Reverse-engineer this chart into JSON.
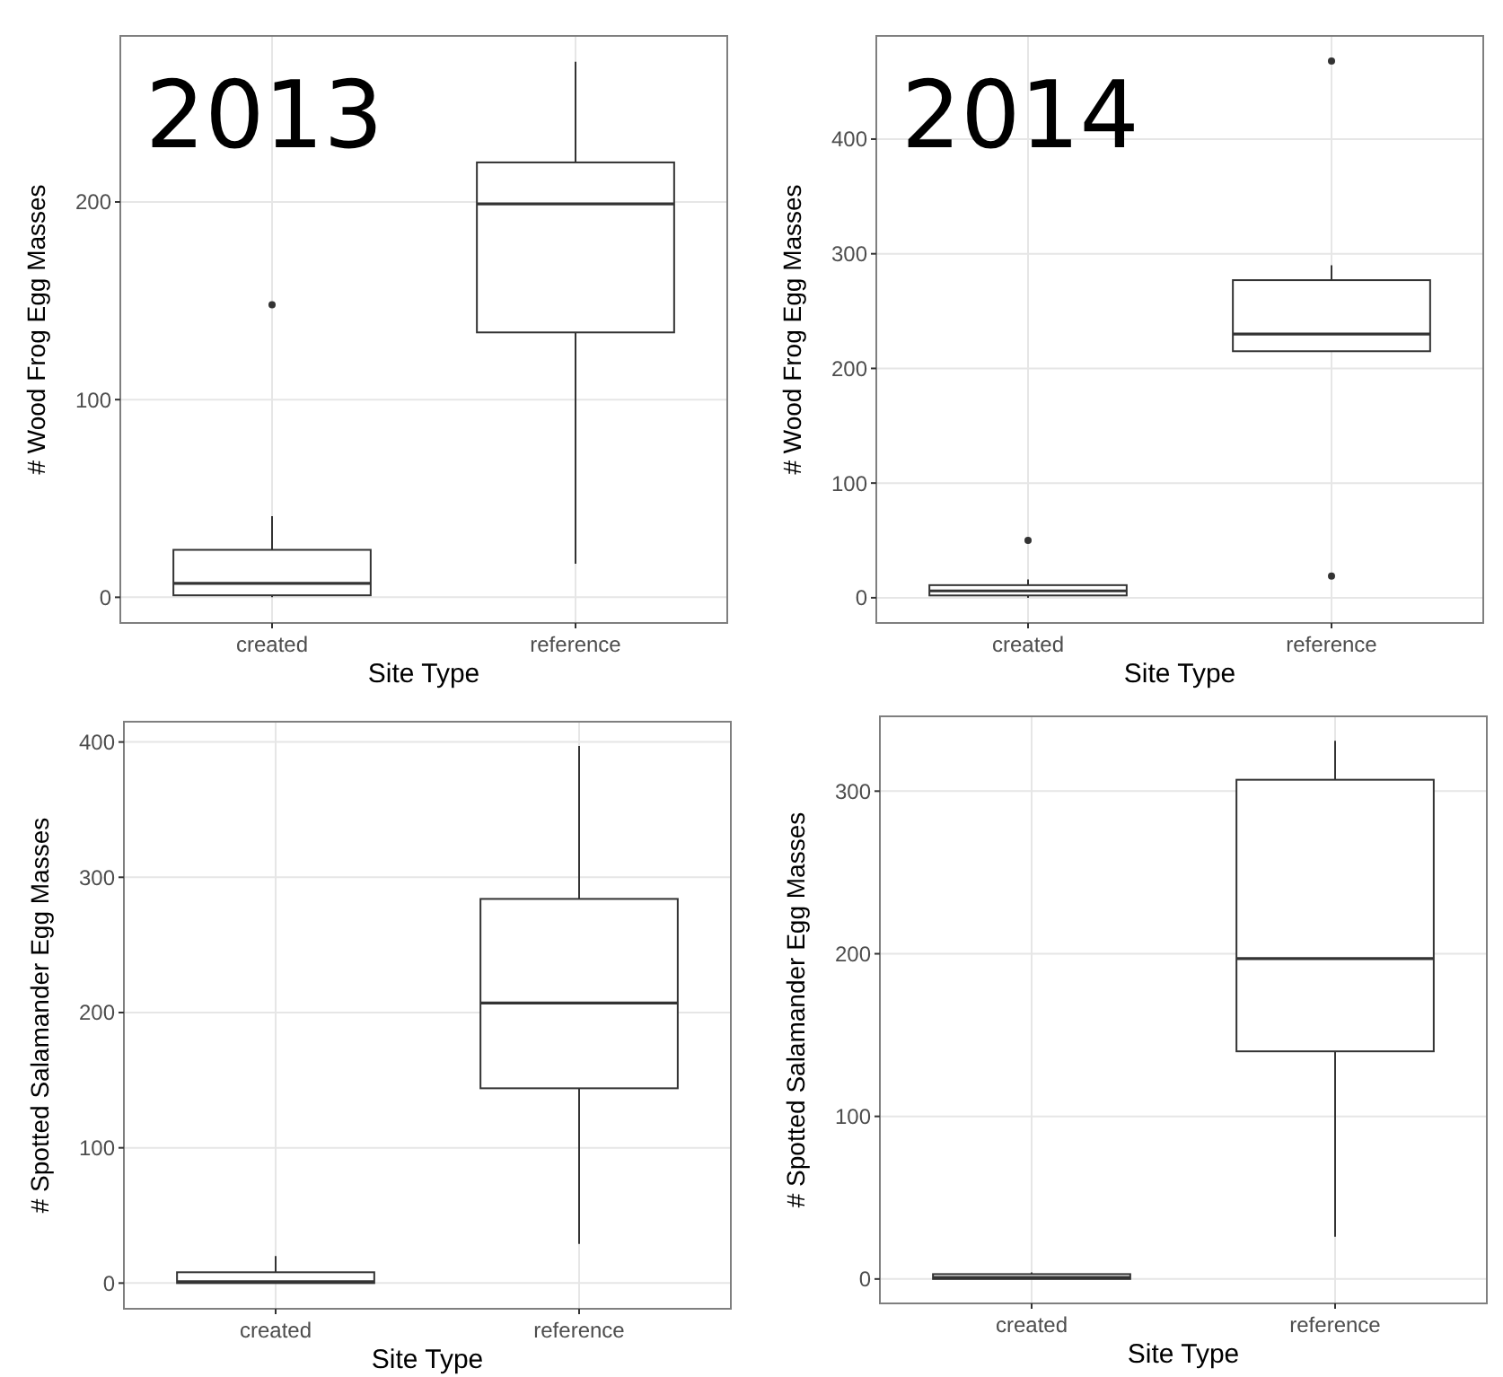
{
  "chart_data": [
    {
      "type": "box",
      "xlabel": "Site Type",
      "ylabel": "# Wood Frog Egg Masses",
      "annotations": [
        "2013"
      ],
      "categories": [
        "created",
        "reference"
      ],
      "ylim": [
        -13,
        284
      ],
      "yticks": [
        0,
        100,
        200
      ],
      "grid": true,
      "color": "#333333",
      "boxes": [
        {
          "low": 0,
          "q1": 1,
          "median": 7,
          "q3": 24,
          "high": 41,
          "outliers": [
            148
          ]
        },
        {
          "low": 17,
          "q1": 134,
          "median": 199,
          "q3": 220,
          "high": 271
        }
      ]
    },
    {
      "type": "box",
      "xlabel": "Site Type",
      "ylabel": "# Wood Frog Egg Masses",
      "annotations": [
        "2014"
      ],
      "categories": [
        "created",
        "reference"
      ],
      "ylim": [
        -22,
        490
      ],
      "yticks": [
        0,
        100,
        200,
        300,
        400
      ],
      "grid": true,
      "color": "#333333",
      "boxes": [
        {
          "low": 0,
          "q1": 2,
          "median": 6,
          "q3": 11,
          "high": 16,
          "outliers": [
            50
          ]
        },
        {
          "low": 215,
          "q1": 215,
          "median": 230,
          "q3": 277,
          "high": 290,
          "outliers": [
            468,
            19
          ]
        }
      ]
    },
    {
      "type": "box",
      "xlabel": "Site Type",
      "ylabel": "# Spotted Salamander Egg Masses",
      "categories": [
        "created",
        "reference"
      ],
      "ylim": [
        -19,
        415
      ],
      "yticks": [
        0,
        100,
        200,
        300,
        400
      ],
      "grid": true,
      "color": "#333333",
      "boxes": [
        {
          "low": 0,
          "q1": 0,
          "median": 1,
          "q3": 8,
          "high": 20
        },
        {
          "low": 29,
          "q1": 144,
          "median": 207,
          "q3": 284,
          "high": 397
        }
      ]
    },
    {
      "type": "box",
      "xlabel": "Site Type",
      "ylabel": "# Spotted Salamander Egg Masses",
      "categories": [
        "created",
        "reference"
      ],
      "ylim": [
        -15,
        346
      ],
      "yticks": [
        0,
        100,
        200,
        300
      ],
      "grid": true,
      "color": "#333333",
      "boxes": [
        {
          "low": 0,
          "q1": 0,
          "median": 1,
          "q3": 3,
          "high": 4
        },
        {
          "low": 26,
          "q1": 140,
          "median": 197,
          "q3": 307,
          "high": 331
        }
      ]
    }
  ]
}
